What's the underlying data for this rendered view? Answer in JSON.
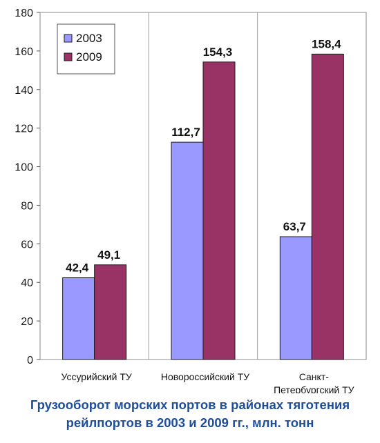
{
  "chart_data": {
    "type": "bar",
    "categories": [
      [
        "Уссурийский ТУ"
      ],
      [
        "Новороссийский ТУ"
      ],
      [
        "Санкт-",
        "Петербургский ТУ"
      ]
    ],
    "series": [
      {
        "name": "2003",
        "values": [
          42.4,
          112.7,
          63.7
        ],
        "labels": [
          "42,4",
          "112,7",
          "63,7"
        ],
        "color": "#9999ff"
      },
      {
        "name": "2009",
        "values": [
          49.1,
          154.3,
          158.4
        ],
        "labels": [
          "49,1",
          "154,3",
          "158,4"
        ],
        "color": "#993366"
      }
    ],
    "ylim": [
      0,
      180
    ],
    "yticks": [
      0,
      20,
      40,
      60,
      80,
      100,
      120,
      140,
      160,
      180
    ],
    "grid": false,
    "category_separators": true,
    "legend_position": "top-left",
    "xlabel": "",
    "ylabel": ""
  },
  "caption": {
    "line1": "Грузооборот морских портов в районах тяготения",
    "line2": "рейлпортов в 2003 и 2009 гг., млн. тонн"
  }
}
